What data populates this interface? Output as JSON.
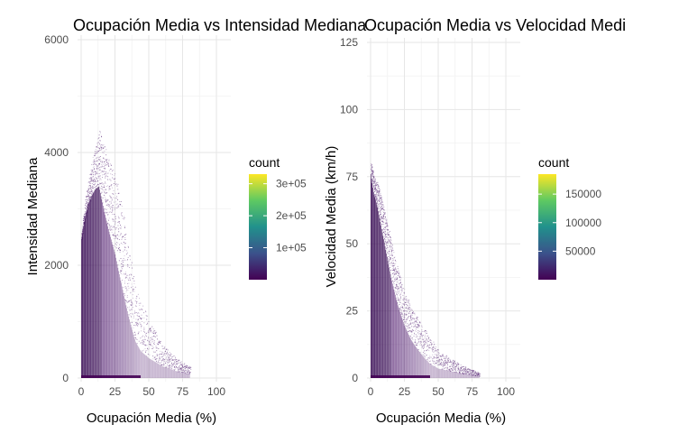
{
  "title_left": "Ocupación Media vs Intensidad Mediana",
  "title_right": "Ocupación Media vs Velocidad Medi",
  "colors": {
    "low": "#440154",
    "mid1": "#31688e",
    "mid2": "#35b779",
    "high": "#fde725",
    "grid": "#e6e6e6"
  },
  "chart_data": [
    {
      "type": "heatmap",
      "title": "Ocupación Media vs Intensidad Mediana",
      "xlabel": "Ocupación Media (%)",
      "ylabel": "Intensidad Mediana",
      "xlim": [
        0,
        102
      ],
      "ylim": [
        -100,
        6200
      ],
      "x_ticks": [
        0,
        25,
        50,
        75,
        100
      ],
      "x_tick_labels": [
        "0",
        "25",
        "50",
        "75",
        "100"
      ],
      "y_ticks": [
        0,
        2000,
        4000,
        6000
      ],
      "y_tick_labels": [
        "0",
        "2000",
        "4000",
        "6000"
      ],
      "grid": true,
      "legend": {
        "title": "count",
        "placement": "right",
        "ticks": [
          100000,
          200000,
          300000
        ],
        "tick_labels": [
          "1e+05",
          "2e+05",
          "3e+05"
        ],
        "max": 330000
      },
      "density_envelope": [
        {
          "x": 0,
          "y_top": 2600
        },
        {
          "x": 2,
          "y_top": 3000
        },
        {
          "x": 5,
          "y_top": 3500
        },
        {
          "x": 10,
          "y_top": 4100
        },
        {
          "x": 13,
          "y_top": 4400
        },
        {
          "x": 17,
          "y_top": 4100
        },
        {
          "x": 20,
          "y_top": 3900
        },
        {
          "x": 25,
          "y_top": 3600
        },
        {
          "x": 30,
          "y_top": 3000
        },
        {
          "x": 35,
          "y_top": 2300
        },
        {
          "x": 40,
          "y_top": 1600
        },
        {
          "x": 50,
          "y_top": 1000
        },
        {
          "x": 60,
          "y_top": 600
        },
        {
          "x": 70,
          "y_top": 350
        },
        {
          "x": 80,
          "y_top": 200
        }
      ]
    },
    {
      "type": "heatmap",
      "title": "Ocupación Media vs Velocidad Medi",
      "xlabel": "Ocupación Media (%)",
      "ylabel": "Velocidad Media (km/h)",
      "xlim": [
        0,
        102
      ],
      "ylim": [
        -2,
        125
      ],
      "x_ticks": [
        0,
        25,
        50,
        75,
        100
      ],
      "x_tick_labels": [
        "0",
        "25",
        "50",
        "75",
        "100"
      ],
      "y_ticks": [
        0,
        25,
        50,
        75,
        100,
        125
      ],
      "y_tick_labels": [
        "0",
        "25",
        "50",
        "75",
        "100",
        "125"
      ],
      "grid": true,
      "legend": {
        "title": "count",
        "placement": "right",
        "ticks": [
          50000,
          100000,
          150000
        ],
        "tick_labels": [
          "50000",
          "100000",
          "150000"
        ],
        "max": 185000
      },
      "density_envelope": [
        {
          "x": 0,
          "y_top": 80
        },
        {
          "x": 2,
          "y_top": 75
        },
        {
          "x": 5,
          "y_top": 72
        },
        {
          "x": 10,
          "y_top": 62
        },
        {
          "x": 15,
          "y_top": 50
        },
        {
          "x": 20,
          "y_top": 40
        },
        {
          "x": 25,
          "y_top": 32
        },
        {
          "x": 30,
          "y_top": 26
        },
        {
          "x": 40,
          "y_top": 18
        },
        {
          "x": 50,
          "y_top": 10
        },
        {
          "x": 60,
          "y_top": 7
        },
        {
          "x": 70,
          "y_top": 4
        },
        {
          "x": 80,
          "y_top": 2
        }
      ]
    }
  ]
}
